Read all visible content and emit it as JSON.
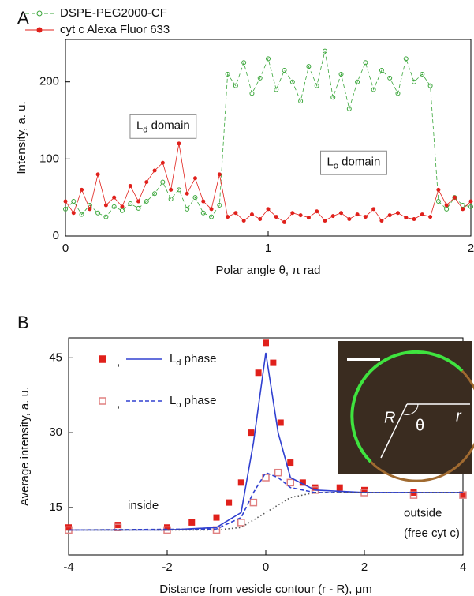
{
  "chart_data": [
    {
      "type": "line",
      "panel": "A",
      "x_label": "Polar angle θ, π rad",
      "y_label": "Intensity, a. u.",
      "xlim": [
        0,
        2
      ],
      "xticks": [
        0,
        1,
        2
      ],
      "ylim": [
        0,
        255
      ],
      "yticks": [
        0,
        100,
        200
      ],
      "annotations": [
        {
          "text": "Ld domain",
          "color": "#e0201b",
          "x": 0.35,
          "y": 143
        },
        {
          "text": "Lo domain",
          "color": "#1a9a3a",
          "x": 1.29,
          "y": 96
        }
      ],
      "x": [
        0,
        0.04,
        0.08,
        0.12,
        0.16,
        0.2,
        0.24,
        0.28,
        0.32,
        0.36,
        0.4,
        0.44,
        0.48,
        0.52,
        0.56,
        0.6,
        0.64,
        0.68,
        0.72,
        0.76,
        0.8,
        0.84,
        0.88,
        0.92,
        0.96,
        1,
        1.04,
        1.08,
        1.12,
        1.16,
        1.2,
        1.24,
        1.28,
        1.32,
        1.36,
        1.4,
        1.44,
        1.48,
        1.52,
        1.56,
        1.6,
        1.64,
        1.68,
        1.72,
        1.76,
        1.8,
        1.84,
        1.88,
        1.92,
        1.96,
        2
      ],
      "series": [
        {
          "name": "DSPE-PEG2000-CF",
          "color": "#3aa63a",
          "dash": "dashed",
          "marker": "circle-open",
          "values": [
            35,
            45,
            28,
            40,
            30,
            25,
            38,
            33,
            42,
            36,
            45,
            55,
            70,
            48,
            60,
            35,
            50,
            30,
            25,
            40,
            210,
            195,
            225,
            185,
            205,
            230,
            190,
            215,
            200,
            175,
            220,
            195,
            240,
            180,
            210,
            165,
            200,
            225,
            190,
            215,
            205,
            185,
            230,
            200,
            210,
            195,
            45,
            35,
            50,
            40,
            38
          ]
        },
        {
          "name": "cyt c Alexa Fluor 633",
          "color": "#e0201b",
          "dash": "solid",
          "marker": "circle",
          "values": [
            45,
            30,
            60,
            35,
            80,
            40,
            50,
            38,
            65,
            45,
            70,
            85,
            95,
            60,
            120,
            55,
            75,
            45,
            35,
            80,
            25,
            30,
            20,
            28,
            22,
            35,
            25,
            18,
            30,
            27,
            24,
            32,
            20,
            26,
            30,
            22,
            28,
            25,
            35,
            20,
            27,
            30,
            24,
            22,
            28,
            25,
            60,
            40,
            50,
            35,
            45
          ]
        }
      ]
    },
    {
      "type": "line",
      "panel": "B",
      "x_label": "Distance from vesicle contour (r - R), μm",
      "y_label": "Average intensity, a. u.",
      "xlim": [
        -4,
        4
      ],
      "xticks": [
        -4,
        -2,
        0,
        2,
        4
      ],
      "ylim": [
        5.5,
        49
      ],
      "yticks": [
        15,
        30,
        45
      ],
      "legend_separator": ",",
      "legend": [
        {
          "label": "Ld phase",
          "marker_series": 0,
          "line_series": 2
        },
        {
          "label": "Lo phase",
          "marker_series": 1,
          "line_series": 3
        }
      ],
      "annotations": [
        {
          "text": "inside",
          "color": "#111",
          "x": -2.8,
          "y": 15.3
        },
        {
          "text": "outside",
          "color": "#111",
          "x": 2.8,
          "y": 13.8
        },
        {
          "text": "(free cyt c)",
          "color": "#111",
          "x": 2.8,
          "y": 9.8
        }
      ],
      "inset_labels": [
        "R",
        "θ",
        "r"
      ],
      "series": [
        {
          "color": "#e0201b",
          "dash": "none",
          "marker": "square",
          "x": [
            -4,
            -3,
            -2,
            -1.5,
            -1,
            -0.75,
            -0.5,
            -0.3,
            -0.15,
            0,
            0.15,
            0.3,
            0.5,
            0.75,
            1,
            1.5,
            2,
            3,
            4
          ],
          "values": [
            11,
            11.5,
            11,
            12,
            13,
            16,
            20,
            30,
            42,
            48,
            44,
            32,
            24,
            20,
            19,
            19,
            18.5,
            18,
            17.5
          ]
        },
        {
          "color": "#e08080",
          "dash": "none",
          "marker": "square-open",
          "x": [
            -4,
            -3,
            -2,
            -1,
            -0.5,
            -0.25,
            0,
            0.25,
            0.5,
            1,
            2,
            3,
            4
          ],
          "values": [
            10.5,
            11,
            10.5,
            10.5,
            12,
            16,
            21,
            22,
            20,
            18.5,
            18,
            17.5,
            17.5
          ]
        },
        {
          "color": "#3040d0",
          "dash": "solid",
          "marker": "none",
          "x": [
            -4,
            -2,
            -1,
            -0.5,
            -0.25,
            0,
            0.25,
            0.5,
            1,
            2,
            4
          ],
          "values": [
            10.5,
            10.5,
            11,
            14,
            28,
            46,
            30,
            21,
            18.5,
            18,
            18
          ]
        },
        {
          "color": "#3040d0",
          "dash": "dashed",
          "marker": "none",
          "x": [
            -4,
            -1,
            -0.5,
            -0.25,
            0,
            0.25,
            0.5,
            1,
            4
          ],
          "values": [
            10.5,
            10.7,
            13,
            18,
            22,
            21,
            19,
            18,
            18
          ]
        },
        {
          "color": "#555555",
          "dash": "dotted",
          "marker": "none",
          "x": [
            -4,
            -1,
            -0.5,
            0,
            0.5,
            1,
            2,
            4
          ],
          "values": [
            10.5,
            10.5,
            11,
            14,
            17,
            18,
            18,
            18
          ]
        }
      ]
    }
  ]
}
